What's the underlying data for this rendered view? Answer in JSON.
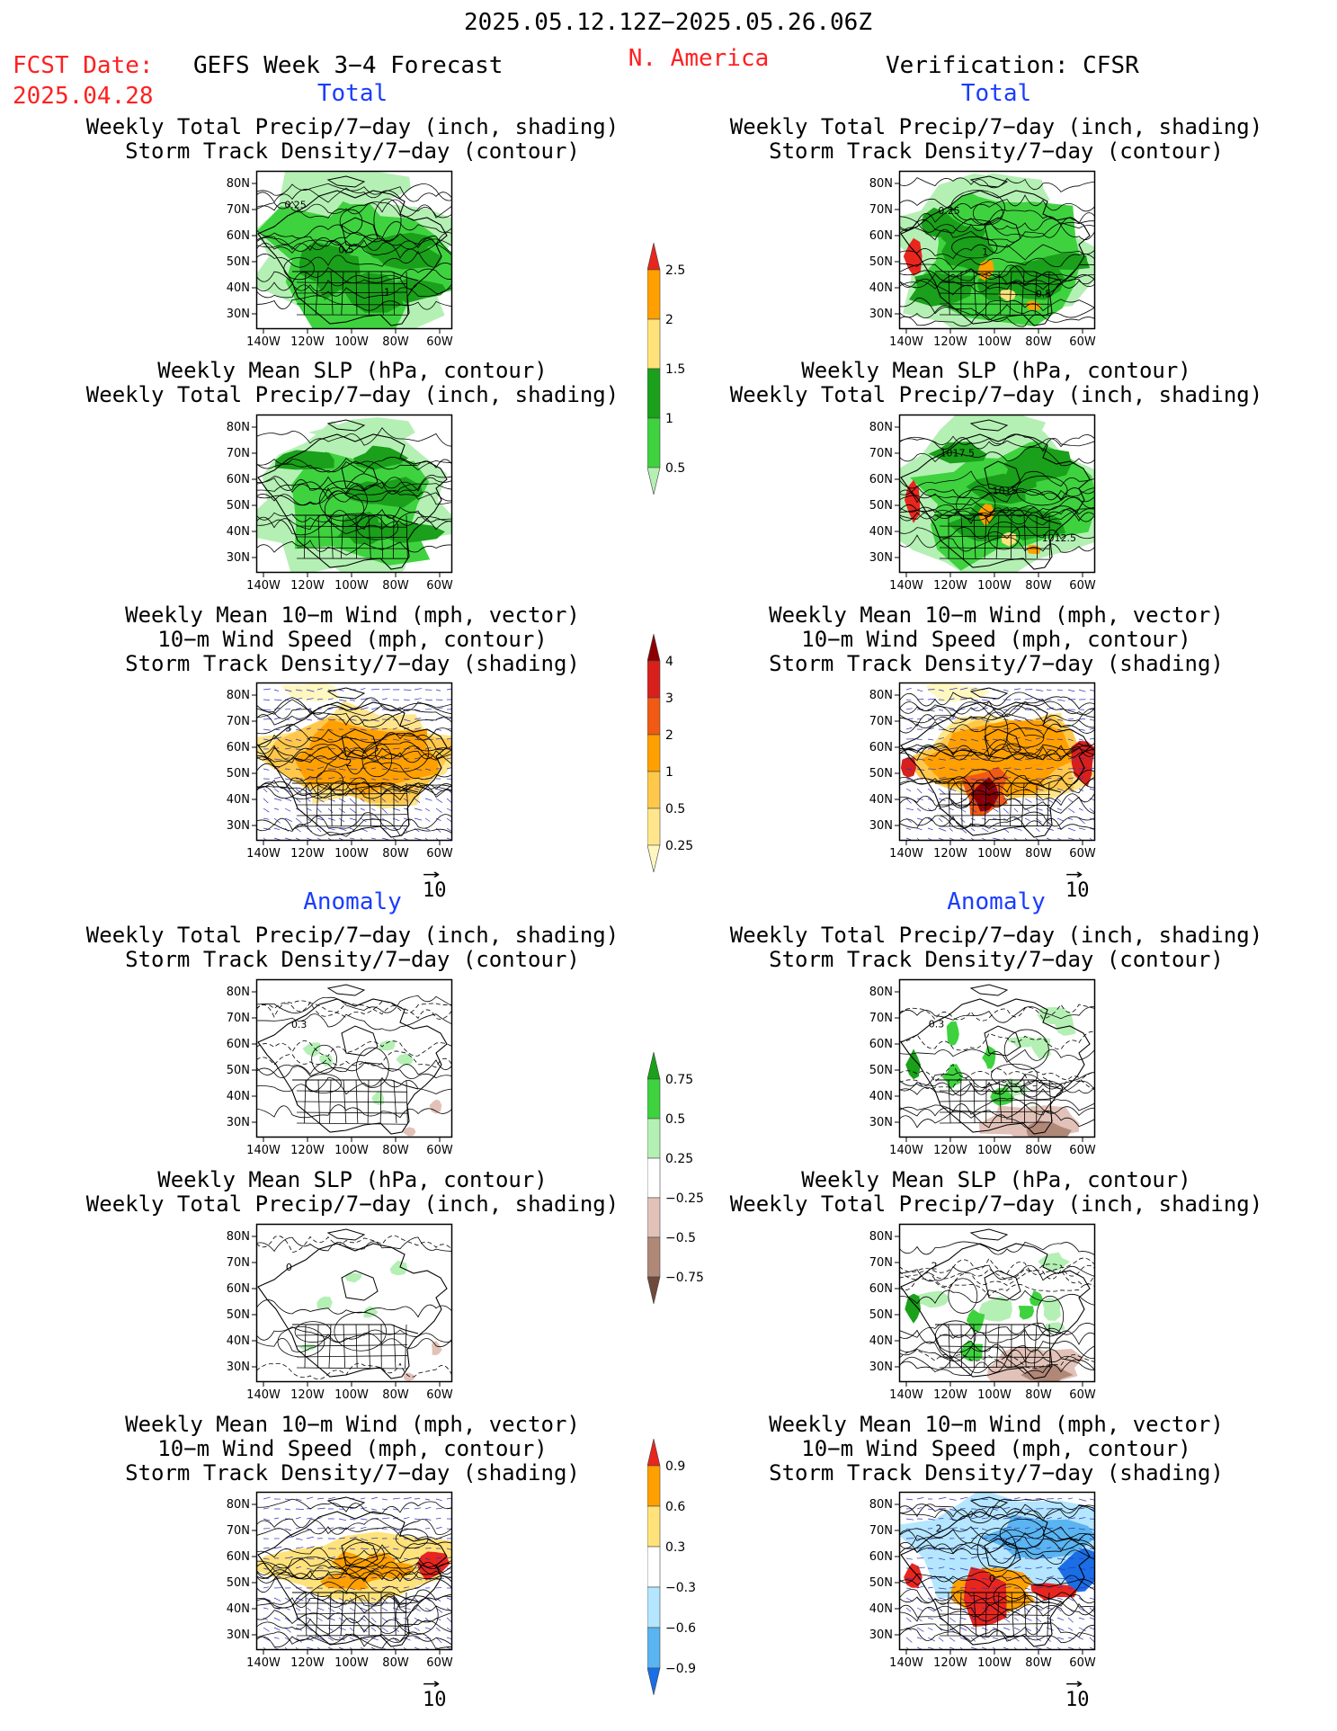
{
  "header": {
    "valid_period": "2025.05.12.12Z−2025.05.26.06Z",
    "fcst_date_label": "FCST Date:",
    "fcst_date_value": "2025.04.28",
    "forecast_title": "GEFS Week 3−4 Forecast",
    "region": "N. America",
    "verification": "Verification: CFSR"
  },
  "sections": {
    "total_label": "Total",
    "anomaly_label": "Anomaly"
  },
  "panel_titles": {
    "precip_storm": [
      "Weekly Total Precip/7−day (inch, shading)",
      "Storm Track Density/7−day (contour)"
    ],
    "slp_precip": [
      "Weekly Mean SLP (hPa, contour)",
      "Weekly Total Precip/7−day (inch, shading)"
    ],
    "wind_storm": [
      "Weekly Mean 10−m Wind (mph, vector)",
      "10−m Wind Speed (mph, contour)",
      "Storm Track Density/7−day (shading)"
    ]
  },
  "map_axes": {
    "lat_labels": [
      "80N",
      "70N",
      "60N",
      "50N",
      "40N",
      "30N"
    ],
    "lon_labels": [
      "140W",
      "120W",
      "100W",
      "80W",
      "60W"
    ]
  },
  "vector_reference": "10",
  "contour_labels": {
    "fcst_total_precip": [
      "0.25",
      "0.5",
      "1"
    ],
    "verif_total_precip": [
      "0.25",
      "1",
      "0.5"
    ],
    "verif_total_slp": [
      "1017.5",
      "1015",
      "1012.5"
    ],
    "fcst_total_wind": [
      "3",
      "2"
    ],
    "fcst_anom_precip": [
      "0.3"
    ],
    "verif_anom_precip": [
      "0.3"
    ],
    "fcst_anom_slp": [
      "0"
    ],
    "verif_anom_slp": [
      "2"
    ],
    "verif_anom_wind": [
      "2",
      "0"
    ]
  },
  "colorbars": {
    "precip_total": {
      "levels": [
        "2.5",
        "2",
        "1.5",
        "1",
        "0.5",
        "0.25"
      ],
      "colors": [
        "#e8261e",
        "#ffa000",
        "#ffe37a",
        "#1aa01a",
        "#3fd23f",
        "#b4f0b4"
      ]
    },
    "storm_total": {
      "levels": [
        "4",
        "3",
        "2",
        "1",
        "0.5",
        "0.25"
      ],
      "colors": [
        "#8c0000",
        "#d7201c",
        "#f05a14",
        "#ffa000",
        "#ffc84a",
        "#ffe68c",
        "#fff7c0"
      ]
    },
    "precip_anom": {
      "levels": [
        "0.75",
        "0.5",
        "0.25",
        "−0.25",
        "−0.5",
        "−0.75"
      ],
      "colors": [
        "#1aa01a",
        "#3fd23f",
        "#b4f0b4",
        "#ffffff",
        "#e2c2b8",
        "#b08878",
        "#6e4a3c"
      ]
    },
    "storm_anom": {
      "levels": [
        "0.9",
        "0.6",
        "0.3",
        "−0.3",
        "−0.6",
        "−0.9"
      ],
      "colors": [
        "#e8261e",
        "#ffa000",
        "#ffe37a",
        "#ffffff",
        "#b4e6ff",
        "#5ab4f0",
        "#1a6ee6"
      ]
    }
  },
  "colors": {
    "red_text": "#ff2020",
    "blue_text": "#1a3cff"
  }
}
